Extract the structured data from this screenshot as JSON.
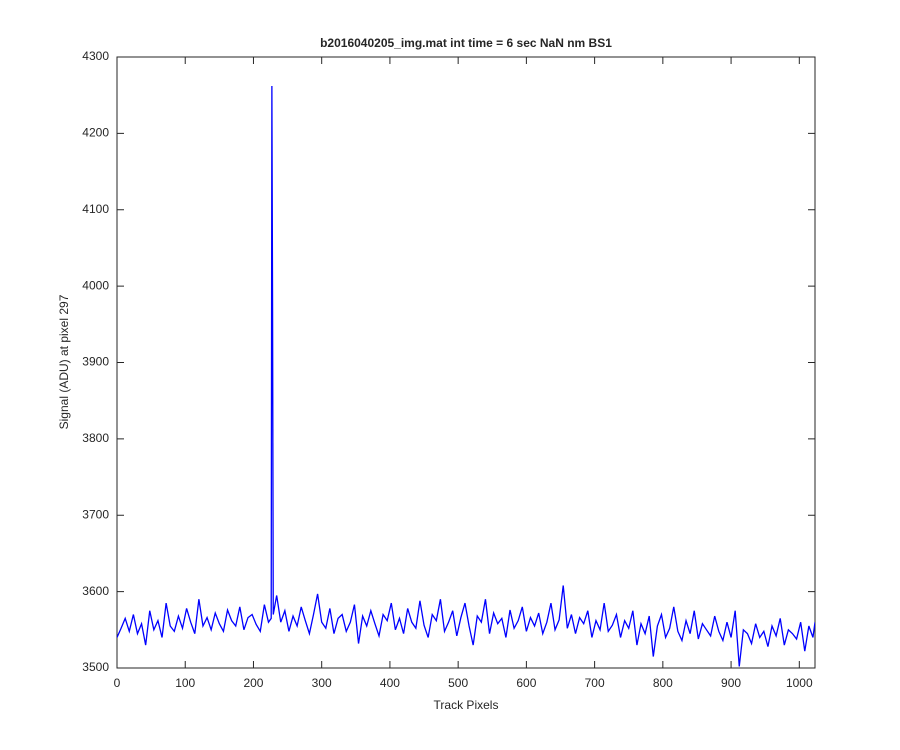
{
  "chart_data": {
    "type": "line",
    "title": "b2016040205_img.mat int time = 6 sec  NaN nm BS1",
    "x_label": "Track Pixels",
    "y_label": "Signal (ADU) at pixel 297",
    "xlim": [
      0,
      1023
    ],
    "xticks": [
      0,
      100,
      200,
      300,
      400,
      500,
      600,
      700,
      800,
      900,
      1000
    ],
    "ylim": [
      3500,
      4300
    ],
    "yticks": [
      3500,
      3600,
      3700,
      3800,
      3900,
      4000,
      4100,
      4200,
      4300
    ],
    "grid": false,
    "series": [
      {
        "color": "#0000ff",
        "x": [
          0,
          6,
          12,
          18,
          24,
          30,
          36,
          42,
          48,
          54,
          60,
          66,
          72,
          78,
          84,
          90,
          96,
          102,
          108,
          114,
          120,
          126,
          132,
          138,
          144,
          150,
          156,
          162,
          168,
          174,
          180,
          186,
          192,
          198,
          204,
          210,
          216,
          222,
          226,
          227,
          228,
          229,
          234,
          240,
          246,
          252,
          258,
          264,
          270,
          276,
          282,
          288,
          294,
          300,
          306,
          312,
          318,
          324,
          330,
          336,
          342,
          348,
          354,
          360,
          366,
          372,
          378,
          384,
          390,
          396,
          402,
          408,
          414,
          420,
          426,
          432,
          438,
          444,
          450,
          456,
          462,
          468,
          474,
          480,
          486,
          492,
          498,
          504,
          510,
          516,
          522,
          528,
          534,
          540,
          546,
          552,
          558,
          564,
          570,
          576,
          582,
          588,
          594,
          600,
          606,
          612,
          618,
          624,
          630,
          636,
          642,
          648,
          654,
          660,
          666,
          672,
          678,
          684,
          690,
          696,
          702,
          708,
          714,
          720,
          726,
          732,
          738,
          744,
          750,
          756,
          762,
          768,
          774,
          780,
          786,
          792,
          798,
          804,
          810,
          816,
          822,
          828,
          834,
          840,
          846,
          852,
          858,
          864,
          870,
          876,
          882,
          888,
          894,
          900,
          906,
          912,
          918,
          924,
          930,
          936,
          942,
          948,
          954,
          960,
          966,
          972,
          978,
          984,
          990,
          996,
          1002,
          1008,
          1014,
          1020,
          1023
        ],
        "values": [
          3540,
          3552,
          3565,
          3548,
          3570,
          3545,
          3558,
          3530,
          3575,
          3550,
          3562,
          3540,
          3585,
          3555,
          3548,
          3568,
          3552,
          3578,
          3560,
          3545,
          3590,
          3555,
          3566,
          3550,
          3572,
          3558,
          3548,
          3576,
          3562,
          3555,
          3580,
          3550,
          3566,
          3570,
          3557,
          3548,
          3583,
          3560,
          3565,
          4262,
          3972,
          3570,
          3595,
          3560,
          3575,
          3548,
          3568,
          3555,
          3580,
          3562,
          3545,
          3570,
          3597,
          3560,
          3552,
          3578,
          3545,
          3565,
          3570,
          3548,
          3560,
          3583,
          3532,
          3568,
          3555,
          3575,
          3558,
          3542,
          3570,
          3562,
          3585,
          3550,
          3565,
          3545,
          3578,
          3560,
          3552,
          3588,
          3556,
          3540,
          3570,
          3562,
          3590,
          3548,
          3560,
          3575,
          3542,
          3566,
          3585,
          3555,
          3530,
          3568,
          3560,
          3590,
          3545,
          3572,
          3558,
          3565,
          3540,
          3576,
          3552,
          3562,
          3580,
          3548,
          3566,
          3555,
          3572,
          3545,
          3560,
          3585,
          3550,
          3563,
          3608,
          3552,
          3570,
          3545,
          3566,
          3558,
          3575,
          3540,
          3562,
          3550,
          3585,
          3548,
          3556,
          3570,
          3540,
          3562,
          3552,
          3575,
          3530,
          3558,
          3545,
          3568,
          3515,
          3555,
          3570,
          3540,
          3552,
          3580,
          3548,
          3536,
          3562,
          3545,
          3575,
          3538,
          3558,
          3550,
          3542,
          3568,
          3548,
          3536,
          3560,
          3540,
          3575,
          3502,
          3550,
          3545,
          3532,
          3558,
          3540,
          3548,
          3528,
          3555,
          3542,
          3565,
          3530,
          3550,
          3545,
          3538,
          3560,
          3522,
          3555,
          3540,
          3560
        ]
      }
    ]
  }
}
